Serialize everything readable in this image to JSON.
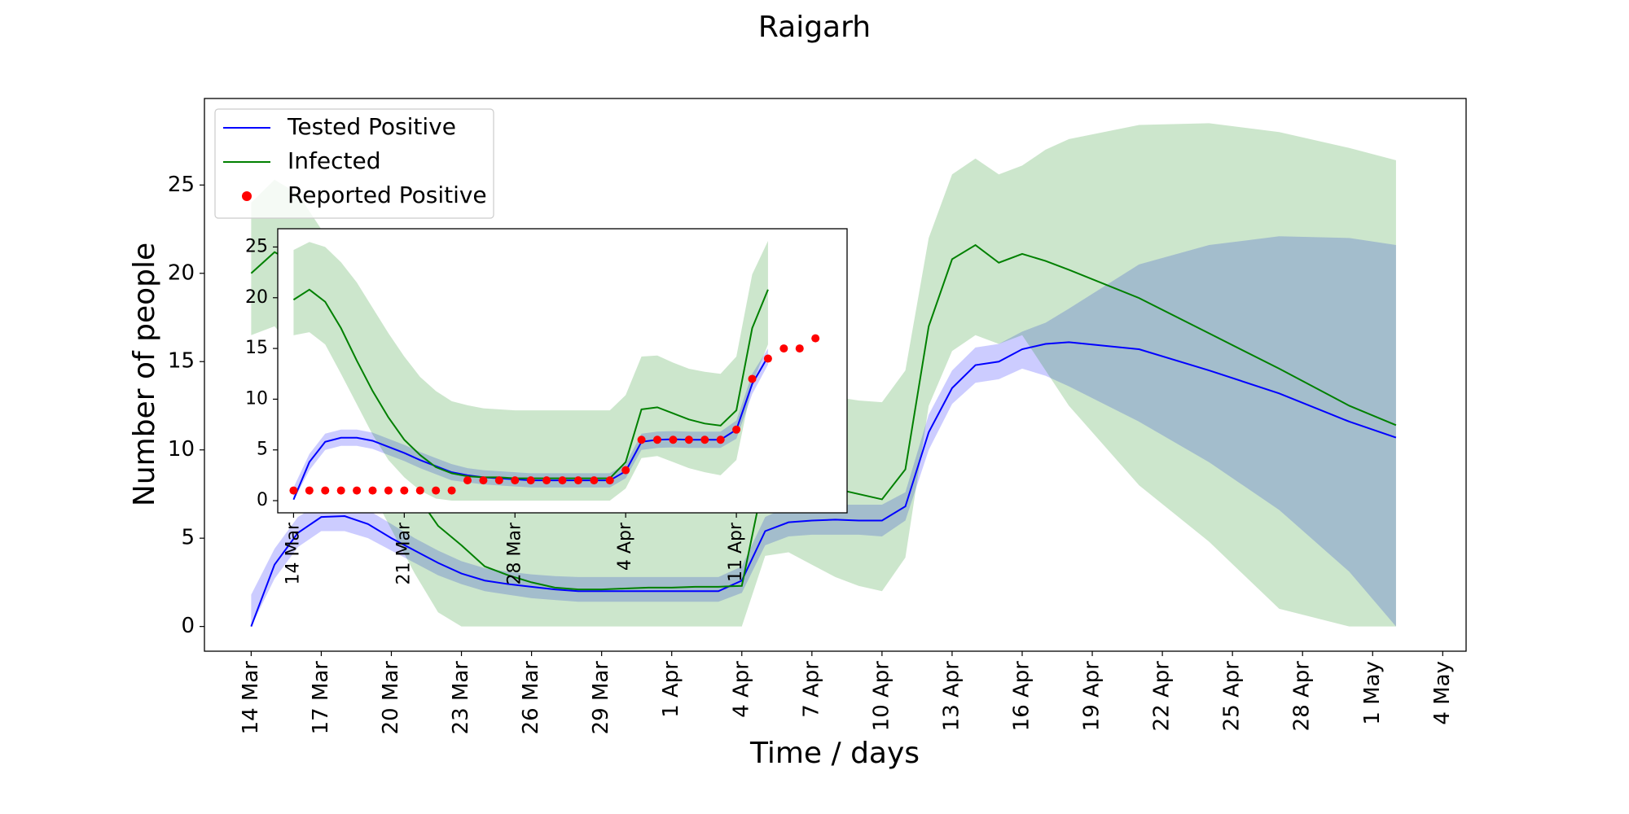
{
  "chart_data": [
    {
      "type": "line",
      "title": "Raigarh",
      "xlabel": "Time / days",
      "ylabel": "Number of people",
      "legend": "upper left",
      "xlim": [
        "12 Mar",
        "5 May"
      ],
      "ylim": [
        -1.4,
        29.9
      ],
      "xticks": [
        "14 Mar",
        "17 Mar",
        "20 Mar",
        "23 Mar",
        "26 Mar",
        "29 Mar",
        "1 Apr",
        "4 Apr",
        "7 Apr",
        "10 Apr",
        "13 Apr",
        "16 Apr",
        "19 Apr",
        "22 Apr",
        "25 Apr",
        "28 Apr",
        "1 May",
        "4 May"
      ],
      "yticks": [
        0,
        5,
        10,
        15,
        20,
        25
      ],
      "x": [
        "14 Mar",
        "15 Mar",
        "16 Mar",
        "17 Mar",
        "18 Mar",
        "19 Mar",
        "20 Mar",
        "21 Mar",
        "22 Mar",
        "23 Mar",
        "24 Mar",
        "25 Mar",
        "26 Mar",
        "27 Mar",
        "28 Mar",
        "29 Mar",
        "30 Mar",
        "31 Mar",
        "1 Apr",
        "2 Apr",
        "3 Apr",
        "4 Apr",
        "5 Apr",
        "6 Apr",
        "7 Apr",
        "8 Apr",
        "9 Apr",
        "10 Apr",
        "11 Apr",
        "12 Apr",
        "13 Apr",
        "14 Apr",
        "15 Apr",
        "16 Apr",
        "17 Apr",
        "18 Apr",
        "21 Apr",
        "24 Apr",
        "27 Apr",
        "30 Apr",
        "2 May"
      ],
      "series": [
        {
          "name": "Tested Positive",
          "color": "#0000ff",
          "values": [
            0,
            3.5,
            5.3,
            6.2,
            6.25,
            5.8,
            5.0,
            4.3,
            3.6,
            3.0,
            2.6,
            2.4,
            2.25,
            2.1,
            2.0,
            2.0,
            2.0,
            2.0,
            2.0,
            2.0,
            2.0,
            2.6,
            5.4,
            5.9,
            6.0,
            6.05,
            6.0,
            6.0,
            6.8,
            11.0,
            13.5,
            14.8,
            15.0,
            15.7,
            16.0,
            16.1,
            15.7,
            14.5,
            13.2,
            11.6,
            10.7
          ],
          "upper": [
            1.8,
            4.4,
            6.2,
            7.0,
            7.1,
            6.6,
            5.8,
            5.0,
            4.3,
            3.7,
            3.3,
            3.1,
            2.95,
            2.85,
            2.8,
            2.8,
            2.8,
            2.8,
            2.8,
            2.8,
            2.8,
            3.4,
            6.2,
            6.8,
            6.9,
            6.9,
            6.9,
            6.9,
            7.6,
            12.0,
            14.5,
            15.8,
            16.0,
            16.7,
            17.2,
            18.0,
            20.5,
            21.6,
            22.1,
            22.0,
            21.6
          ],
          "lower": [
            0,
            2.7,
            4.5,
            5.4,
            5.4,
            5.0,
            4.3,
            3.6,
            2.9,
            2.4,
            2.0,
            1.8,
            1.6,
            1.5,
            1.4,
            1.4,
            1.4,
            1.4,
            1.4,
            1.4,
            1.4,
            1.9,
            4.6,
            5.1,
            5.2,
            5.2,
            5.2,
            5.1,
            6.0,
            10.0,
            12.6,
            13.8,
            14.0,
            14.6,
            14.2,
            13.6,
            11.6,
            9.3,
            6.6,
            3.1,
            0
          ]
        },
        {
          "name": "Infected",
          "color": "#008000",
          "values": [
            20.0,
            21.2,
            20.5,
            18.5,
            15.8,
            12.9,
            10.2,
            7.6,
            5.7,
            4.6,
            3.4,
            2.9,
            2.5,
            2.2,
            2.1,
            2.1,
            2.15,
            2.2,
            2.2,
            2.25,
            2.25,
            2.3,
            8.7,
            8.6,
            8.2,
            7.8,
            7.5,
            7.2,
            8.9,
            17.0,
            20.8,
            21.6,
            20.6,
            21.1,
            20.7,
            20.2,
            18.6,
            16.6,
            14.6,
            12.5,
            11.4
          ],
          "upper": [
            24.0,
            25.3,
            24.5,
            22.5,
            20.0,
            17.0,
            14.5,
            12.2,
            10.4,
            9.0,
            8.3,
            8.0,
            7.8,
            7.7,
            7.7,
            7.7,
            7.7,
            7.7,
            7.7,
            7.7,
            7.7,
            8.8,
            14.0,
            14.2,
            13.5,
            13.0,
            12.8,
            12.7,
            14.5,
            22.0,
            25.6,
            26.5,
            25.6,
            26.1,
            27.0,
            27.6,
            28.4,
            28.5,
            28.0,
            27.1,
            26.4
          ],
          "lower": [
            16.5,
            17.0,
            15.5,
            13.0,
            10.5,
            8.0,
            5.5,
            3.0,
            0.8,
            0,
            0,
            0,
            0,
            0,
            0,
            0,
            0,
            0,
            0,
            0,
            0,
            0,
            4.0,
            4.2,
            3.5,
            2.8,
            2.3,
            2.0,
            3.9,
            12.5,
            15.6,
            16.5,
            16.0,
            16.5,
            14.5,
            12.5,
            8.0,
            4.8,
            1.0,
            0,
            0
          ]
        },
        {
          "name": "Reported Positive",
          "color": "#ff0000",
          "marker": "dot"
        }
      ]
    },
    {
      "type": "line",
      "xlim": [
        "13 Mar",
        "18 Apr"
      ],
      "ylim": [
        -1.2,
        26.8
      ],
      "xticks": [
        "14 Mar",
        "21 Mar",
        "28 Mar",
        "4 Apr",
        "11 Apr"
      ],
      "yticks": [
        0,
        5,
        10,
        15,
        20,
        25
      ],
      "x": [
        "14 Mar",
        "15 Mar",
        "16 Mar",
        "17 Mar",
        "18 Mar",
        "19 Mar",
        "20 Mar",
        "21 Mar",
        "22 Mar",
        "23 Mar",
        "24 Mar",
        "25 Mar",
        "26 Mar",
        "27 Mar",
        "28 Mar",
        "29 Mar",
        "30 Mar",
        "31 Mar",
        "1 Apr",
        "2 Apr",
        "3 Apr",
        "4 Apr",
        "5 Apr",
        "6 Apr",
        "7 Apr",
        "8 Apr",
        "9 Apr",
        "10 Apr",
        "11 Apr",
        "12 Apr",
        "13 Apr"
      ],
      "series": [
        {
          "color": "#0000ff",
          "values": [
            0.1,
            3.8,
            5.8,
            6.2,
            6.2,
            5.9,
            5.3,
            4.7,
            4.0,
            3.4,
            2.8,
            2.5,
            2.3,
            2.2,
            2.1,
            2.0,
            2.0,
            2.0,
            2.0,
            2.0,
            2.0,
            2.9,
            5.8,
            6.0,
            6.05,
            6.0,
            6.0,
            6.0,
            7.0,
            11.5,
            14.2
          ],
          "upper": [
            1.3,
            4.6,
            6.6,
            7.0,
            7.0,
            6.7,
            6.1,
            5.5,
            4.8,
            4.2,
            3.6,
            3.2,
            3.0,
            2.9,
            2.8,
            2.7,
            2.7,
            2.7,
            2.7,
            2.7,
            2.7,
            3.6,
            6.6,
            6.8,
            6.85,
            6.8,
            6.8,
            6.8,
            7.9,
            12.5,
            15.0
          ],
          "lower": [
            0,
            3.0,
            5.0,
            5.4,
            5.4,
            5.1,
            4.5,
            3.9,
            3.2,
            2.6,
            2.0,
            1.8,
            1.6,
            1.5,
            1.4,
            1.3,
            1.3,
            1.3,
            1.3,
            1.3,
            1.3,
            2.2,
            5.0,
            5.2,
            5.25,
            5.2,
            5.2,
            5.2,
            6.1,
            10.5,
            13.4
          ]
        },
        {
          "color": "#008000",
          "values": [
            19.8,
            20.8,
            19.6,
            17.0,
            13.8,
            10.8,
            8.2,
            6.0,
            4.5,
            3.3,
            2.7,
            2.4,
            2.3,
            2.3,
            2.2,
            2.2,
            2.2,
            2.2,
            2.2,
            2.2,
            2.2,
            3.8,
            9.0,
            9.2,
            8.6,
            8.0,
            7.6,
            7.4,
            8.9,
            17.0,
            20.8
          ],
          "upper": [
            24.7,
            25.5,
            25.0,
            23.5,
            21.5,
            19.0,
            16.5,
            14.2,
            12.2,
            10.8,
            9.8,
            9.4,
            9.1,
            9.0,
            8.9,
            8.9,
            8.9,
            8.9,
            8.9,
            8.9,
            8.9,
            10.4,
            14.2,
            14.3,
            13.6,
            13.0,
            12.7,
            12.5,
            14.2,
            22.3,
            25.6
          ],
          "lower": [
            16.3,
            16.6,
            15.4,
            12.5,
            9.5,
            6.5,
            4.0,
            2.3,
            1.0,
            0.2,
            0,
            0,
            0,
            0,
            0,
            0,
            0,
            0,
            0,
            0,
            0,
            1.2,
            4.2,
            4.4,
            3.8,
            3.2,
            2.8,
            2.5,
            4.0,
            11.5,
            15.4
          ]
        },
        {
          "color": "#ff0000",
          "marker": "dot",
          "x": [
            "14 Mar",
            "15 Mar",
            "16 Mar",
            "17 Mar",
            "18 Mar",
            "19 Mar",
            "20 Mar",
            "21 Mar",
            "22 Mar",
            "23 Mar",
            "24 Mar",
            "25 Mar",
            "26 Mar",
            "27 Mar",
            "28 Mar",
            "29 Mar",
            "30 Mar",
            "31 Mar",
            "1 Apr",
            "2 Apr",
            "3 Apr",
            "4 Apr",
            "5 Apr",
            "6 Apr",
            "7 Apr",
            "8 Apr",
            "9 Apr",
            "10 Apr",
            "11 Apr",
            "12 Apr",
            "13 Apr",
            "14 Apr",
            "15 Apr",
            "16 Apr"
          ],
          "values": [
            1,
            1,
            1,
            1,
            1,
            1,
            1,
            1,
            1,
            1,
            1,
            2,
            2,
            2,
            2,
            2,
            2,
            2,
            2,
            2,
            2,
            3,
            6,
            6,
            6,
            6,
            6,
            6,
            7,
            12,
            14,
            15,
            15,
            16
          ]
        }
      ]
    }
  ]
}
